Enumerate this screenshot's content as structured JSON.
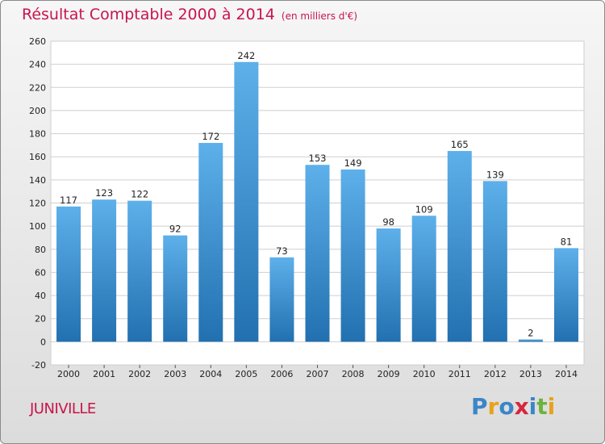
{
  "title": "Résultat Comptable 2000 à 2014",
  "unit_note": "(en milliers d'€)",
  "commune": "JUNIVILLE",
  "logo": {
    "text": "Proxiti",
    "letters": [
      {
        "ch": "P",
        "color": "#3a86c8"
      },
      {
        "ch": "r",
        "color": "#e8a21b"
      },
      {
        "ch": "o",
        "color": "#3a86c8"
      },
      {
        "ch": "x",
        "color": "#d6263f"
      },
      {
        "ch": "i",
        "color": "#3a86c8"
      },
      {
        "ch": "t",
        "color": "#6cb33e"
      },
      {
        "ch": "i",
        "color": "#e8a21b"
      }
    ]
  },
  "colors": {
    "title": "#c8144d",
    "bar_top": "#5db0ea",
    "bar_bottom": "#2270b0",
    "grid": "#cfcfcf"
  },
  "chart_data": {
    "type": "bar",
    "title": "Résultat Comptable 2000 à 2014",
    "categories": [
      "2000",
      "2001",
      "2002",
      "2003",
      "2004",
      "2005",
      "2006",
      "2007",
      "2008",
      "2009",
      "2010",
      "2011",
      "2012",
      "2013",
      "2014"
    ],
    "values": [
      117,
      123,
      122,
      92,
      172,
      242,
      73,
      153,
      149,
      98,
      109,
      165,
      139,
      2,
      81
    ],
    "ylim": [
      -20,
      260
    ],
    "yticks": [
      -20,
      0,
      20,
      40,
      60,
      80,
      100,
      120,
      140,
      160,
      180,
      200,
      220,
      240,
      260
    ],
    "grid": true,
    "data_labels": true
  }
}
